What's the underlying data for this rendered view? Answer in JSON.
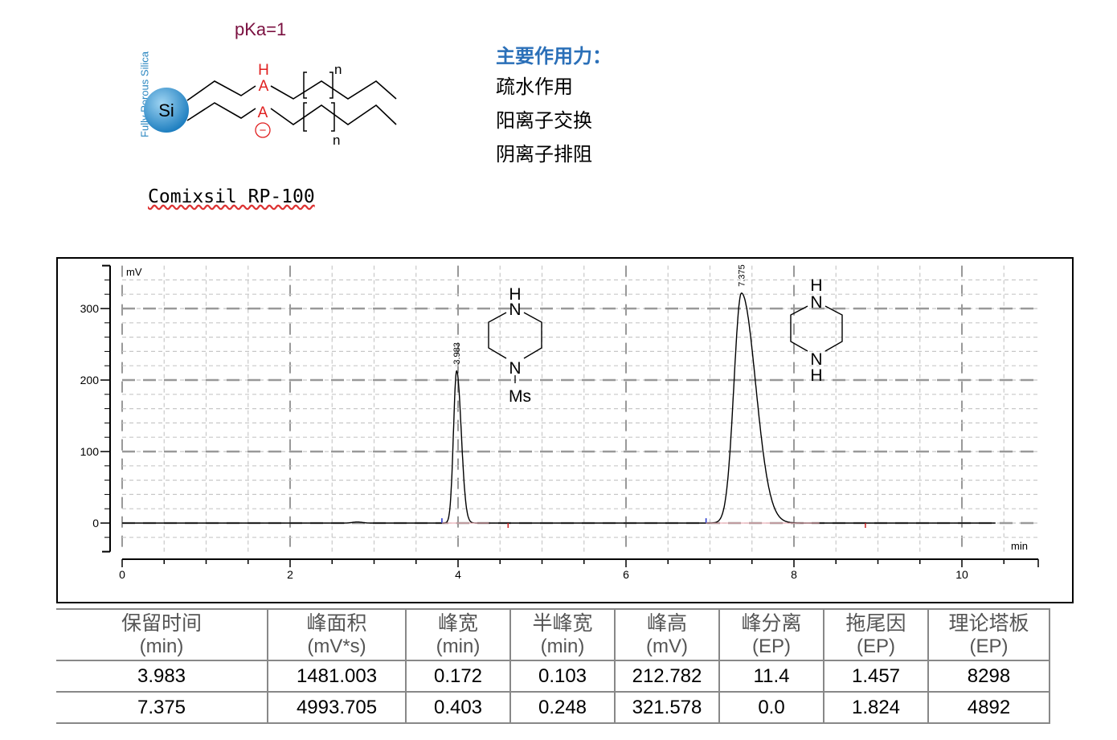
{
  "structure": {
    "pka_label": "pKa=1",
    "support_label": "Fully Porous Silica",
    "si_label": "Si",
    "group_h": "H",
    "group_a1": "A",
    "group_a2": "A",
    "charge": "−",
    "repeat_n": "n",
    "product_name": "Comixsil RP-100"
  },
  "forces": {
    "title": "主要作用力：",
    "items": [
      "疏水作用",
      "阳离子交换",
      "阴离子排阻"
    ]
  },
  "chart_data": {
    "type": "line",
    "xlabel": "min",
    "ylabel": "mV",
    "xlim": [
      0,
      11
    ],
    "ylim": [
      -40,
      360
    ],
    "xticks": [
      "0",
      "2",
      "4",
      "6",
      "8",
      "10"
    ],
    "yticks": [
      "0",
      "100",
      "200",
      "300"
    ],
    "grid": true,
    "peaks": [
      {
        "rt": 3.983,
        "label": "3.983",
        "height": 212.782,
        "half_width": 0.103,
        "compound_top": "H",
        "compound_n1": "N",
        "compound_n2": "N",
        "compound_sub": "Ms"
      },
      {
        "rt": 7.375,
        "label": "7.375",
        "height": 321.578,
        "half_width": 0.248,
        "compound_top": "H",
        "compound_n1": "N",
        "compound_n2": "N",
        "compound_sub": "H"
      }
    ],
    "trace_end": 10.4
  },
  "table": {
    "headers": [
      [
        "保留时间",
        "(min)"
      ],
      [
        "峰面积",
        "(mV*s)"
      ],
      [
        "峰宽",
        "(min)"
      ],
      [
        "半峰宽",
        "(min)"
      ],
      [
        "峰高",
        "(mV)"
      ],
      [
        "峰分离",
        "(EP)"
      ],
      [
        "拖尾因",
        "(EP)"
      ],
      [
        "理论塔板",
        "(EP)"
      ]
    ],
    "rows": [
      [
        "3.983",
        "1481.003",
        "0.172",
        "0.103",
        "212.782",
        "11.4",
        "1.457",
        "8298"
      ],
      [
        "7.375",
        "4993.705",
        "0.403",
        "0.248",
        "321.578",
        "0.0",
        "1.824",
        "4892"
      ]
    ]
  }
}
